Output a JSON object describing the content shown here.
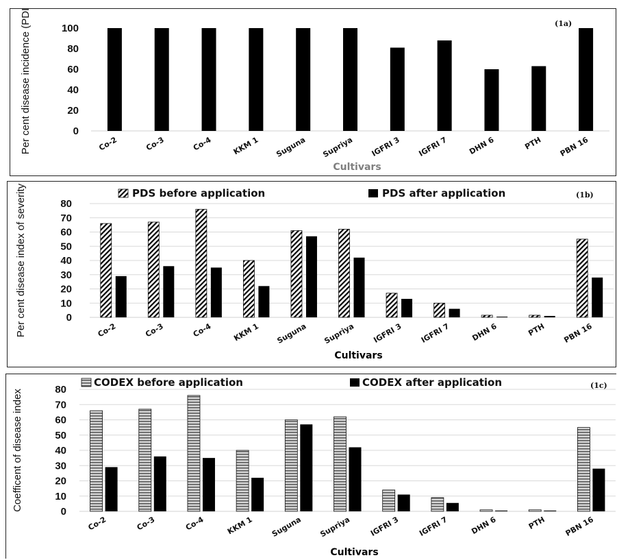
{
  "chart_data": [
    {
      "type": "bar",
      "panel_tag": "(1a)",
      "ylabel": "Per cent disease incidence (PDI)",
      "xlabel": "Cultivars",
      "xlabel_color": "#7f7f7f",
      "ylim": [
        0,
        100
      ],
      "yticks": [
        0,
        20,
        40,
        60,
        80,
        100
      ],
      "grid": false,
      "categories": [
        "Co-2",
        "Co-3",
        "Co-4",
        "KKM 1",
        "Suguna",
        "Supriya",
        "IGFRI 3",
        "IGFRI 7",
        "DHN 6",
        "PTH",
        "PBN 16"
      ],
      "series": [
        {
          "values": [
            100,
            100,
            100,
            100,
            100,
            100,
            81,
            88,
            60,
            63,
            100
          ],
          "color": "#000000",
          "pattern": "solid"
        }
      ]
    },
    {
      "type": "bar",
      "panel_tag": "(1b)",
      "ylabel": "Per cent disease index of severity",
      "xlabel": "Cultivars",
      "xlabel_color": "#000000",
      "ylim": [
        0,
        80
      ],
      "yticks": [
        0,
        10,
        20,
        30,
        40,
        50,
        60,
        70,
        80
      ],
      "grid": true,
      "legend": "top",
      "categories": [
        "Co-2",
        "Co-3",
        "Co-4",
        "KKM 1",
        "Suguna",
        "Supriya",
        "IGFRI 3",
        "IGFRI 7",
        "DHN 6",
        "PTH",
        "PBN 16"
      ],
      "series": [
        {
          "name": "PDS before application",
          "values": [
            66,
            67,
            76,
            40,
            61,
            62,
            17,
            10,
            1.5,
            1.5,
            55
          ],
          "color": "#000000",
          "pattern": "diagonal"
        },
        {
          "name": "PDS after application",
          "values": [
            29,
            36,
            35,
            22,
            57,
            42,
            13,
            6,
            0.5,
            1,
            28
          ],
          "color": "#000000",
          "pattern": "solid"
        }
      ]
    },
    {
      "type": "bar",
      "panel_tag": "(1c)",
      "ylabel": "Coefficent of disease index",
      "xlabel": "Cultivars",
      "xlabel_color": "#000000",
      "ylim": [
        0,
        80
      ],
      "yticks": [
        0,
        10,
        20,
        30,
        40,
        50,
        60,
        70,
        80
      ],
      "grid": true,
      "legend": "top",
      "categories": [
        "Co-2",
        "Co-3",
        "Co-4",
        "KKM 1",
        "Suguna",
        "Supriya",
        "IGFRI 3",
        "IGFRI 7",
        "DHN 6",
        "PTH",
        "PBN 16"
      ],
      "series": [
        {
          "name": "CODEX before application",
          "values": [
            66,
            67,
            76,
            40,
            60,
            62,
            14,
            9,
            1,
            1,
            55
          ],
          "color": "#7f7f7f",
          "pattern": "horizontal"
        },
        {
          "name": "CODEX after application",
          "values": [
            29,
            36,
            35,
            22,
            57,
            42,
            11,
            5.5,
            0.5,
            0.5,
            28
          ],
          "color": "#000000",
          "pattern": "solid"
        }
      ]
    }
  ]
}
